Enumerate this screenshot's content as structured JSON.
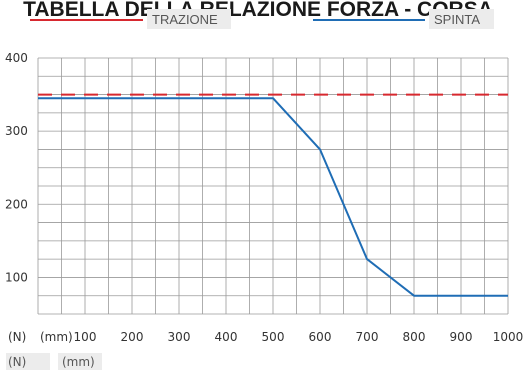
{
  "chart_data": {
    "type": "line",
    "title": "TABELLA DELLA RELAZIONE FORZA - CORSA",
    "xlabel": "(mm)",
    "ylabel": "(N)",
    "xlim": [
      0,
      1000
    ],
    "ylim": [
      50,
      400
    ],
    "x_ticks": [
      100,
      200,
      300,
      400,
      500,
      600,
      700,
      800,
      900,
      1000
    ],
    "y_ticks": [
      100,
      200,
      300,
      400
    ],
    "grid": true,
    "legend_position": "top",
    "series": [
      {
        "name": "TRAZIONE",
        "color": "#d7282f",
        "style": "dashed",
        "x": [
          0,
          1000
        ],
        "y": [
          350,
          350
        ]
      },
      {
        "name": "SPINTA",
        "color": "#1f6db5",
        "style": "solid",
        "x": [
          0,
          500,
          600,
          700,
          800,
          1000
        ],
        "y": [
          345,
          345,
          275,
          125,
          75,
          75
        ]
      }
    ]
  },
  "footer": {
    "unit_y": "(N)",
    "unit_x": "(mm)"
  }
}
